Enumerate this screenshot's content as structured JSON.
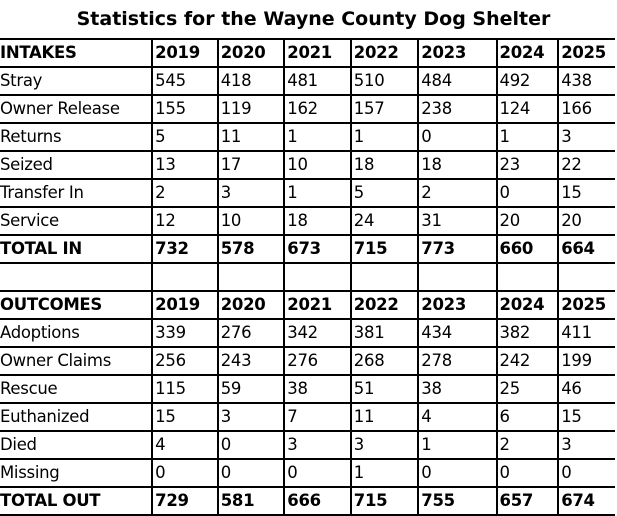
{
  "title": "Statistics for the Wayne County Dog Shelter",
  "years": [
    "2019",
    "2020",
    "2021",
    "2022",
    "2023",
    "2024",
    "2025"
  ],
  "intakes": {
    "header": "INTAKES",
    "rows": [
      {
        "label": "Stray",
        "values": [
          "545",
          "418",
          "481",
          "510",
          "484",
          "492",
          "438"
        ]
      },
      {
        "label": "Owner Release",
        "values": [
          "155",
          "119",
          "162",
          "157",
          "238",
          "124",
          "166"
        ]
      },
      {
        "label": "Returns",
        "values": [
          "5",
          "11",
          "1",
          "1",
          "0",
          "1",
          "3"
        ]
      },
      {
        "label": "Seized",
        "values": [
          "13",
          "17",
          "10",
          "18",
          "18",
          "23",
          "22"
        ]
      },
      {
        "label": "Transfer In",
        "values": [
          "2",
          "3",
          "1",
          "5",
          "2",
          "0",
          "15"
        ]
      },
      {
        "label": "Service",
        "values": [
          "12",
          "10",
          "18",
          "24",
          "31",
          "20",
          "20"
        ]
      }
    ],
    "total": {
      "label": "TOTAL IN",
      "values": [
        "732",
        "578",
        "673",
        "715",
        "773",
        "660",
        "664"
      ]
    }
  },
  "outcomes": {
    "header": "OUTCOMES",
    "rows": [
      {
        "label": "Adoptions",
        "values": [
          "339",
          "276",
          "342",
          "381",
          "434",
          "382",
          "411"
        ]
      },
      {
        "label": "Owner Claims",
        "values": [
          "256",
          "243",
          "276",
          "268",
          "278",
          "242",
          "199"
        ]
      },
      {
        "label": "Rescue",
        "values": [
          "115",
          "59",
          "38",
          "51",
          "38",
          "25",
          "46"
        ]
      },
      {
        "label": "Euthanized",
        "values": [
          "15",
          "3",
          "7",
          "11",
          "4",
          "6",
          "15"
        ]
      },
      {
        "label": "Died",
        "values": [
          "4",
          "0",
          "3",
          "3",
          "1",
          "2",
          "3"
        ]
      },
      {
        "label": "Missing",
        "values": [
          "0",
          "0",
          "0",
          "1",
          "0",
          "0",
          "0"
        ]
      }
    ],
    "total": {
      "label": "TOTAL OUT",
      "values": [
        "729",
        "581",
        "666",
        "715",
        "755",
        "657",
        "674"
      ]
    }
  }
}
